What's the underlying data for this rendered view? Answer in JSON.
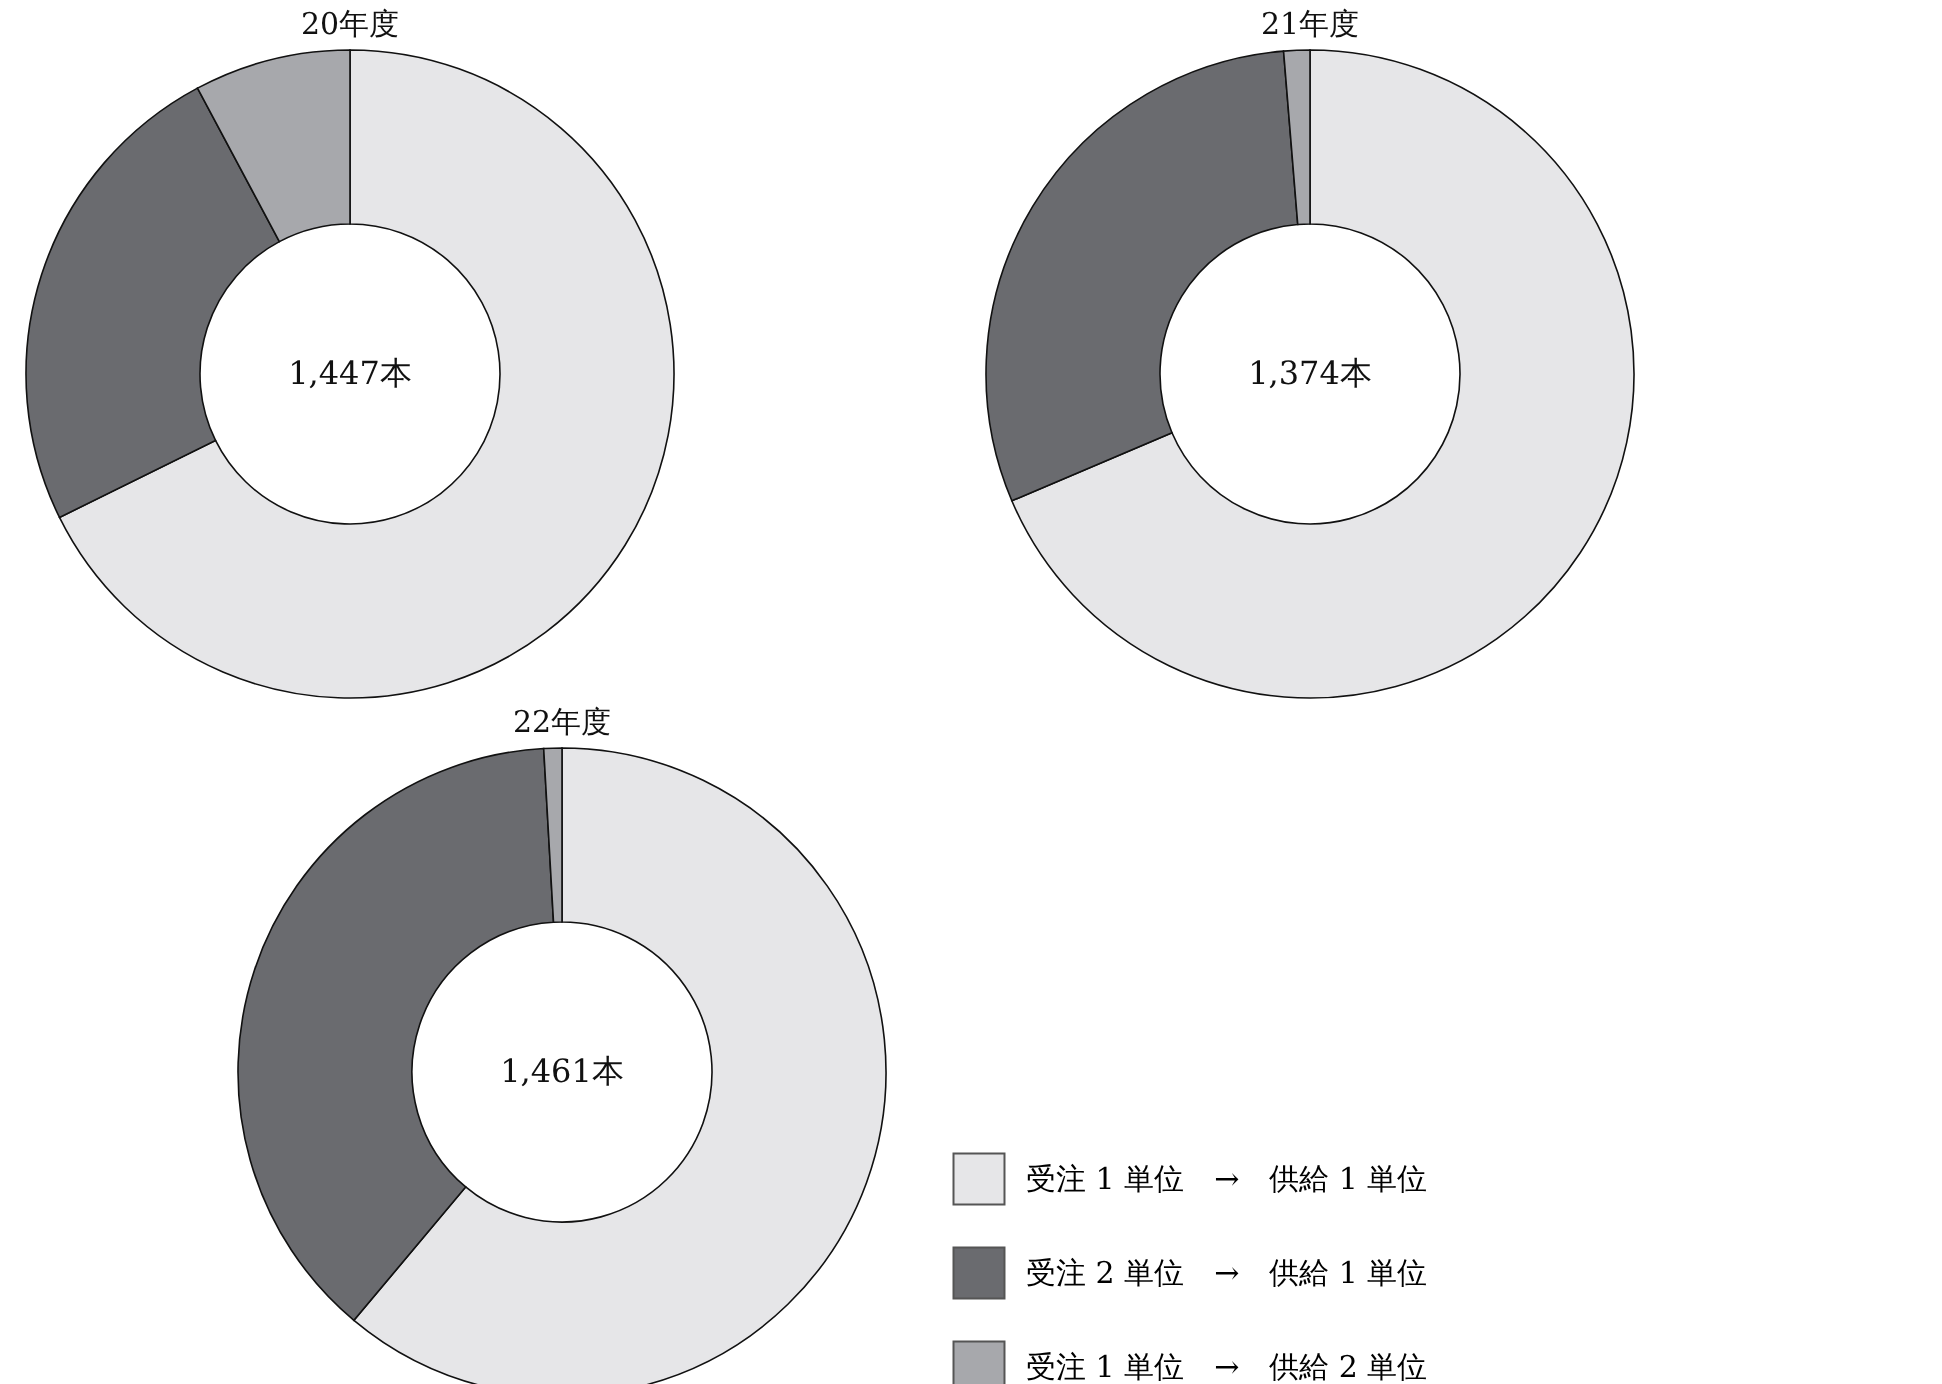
{
  "chart_data": [
    {
      "type": "donut",
      "title": "20年度",
      "categories": [
        "受注 1 単位　→　供給 1 単位",
        "受注 2 単位　→　供給 1 単位",
        "受注 1 単位　→　供給 2 単位"
      ],
      "values": [
        67.7,
        24.5,
        7.8
      ],
      "colors": [
        "#e6e6e8",
        "#6a6b6f",
        "#a7a8ac"
      ],
      "annotations": [
        "1,447本"
      ],
      "legend": "bottom right"
    },
    {
      "type": "donut",
      "title": "21年度",
      "values": [
        68.6,
        30.1,
        1.3
      ],
      "colors": [
        "#e6e6e8",
        "#6a6b6f",
        "#a7a8ac"
      ],
      "annotations": [
        "1,374本"
      ]
    },
    {
      "type": "donut",
      "title": "22年度",
      "values": [
        61.1,
        38.0,
        0.9
      ],
      "colors": [
        "#e6e6e8",
        "#6a6b6f",
        "#a7a8ac"
      ],
      "annotations": [
        "1,461本"
      ]
    }
  ]
}
